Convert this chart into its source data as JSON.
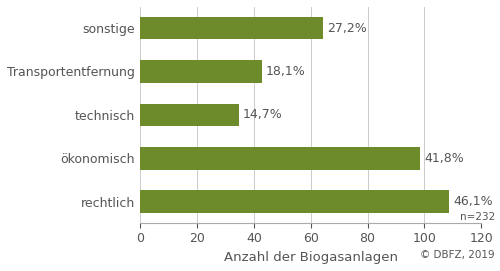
{
  "categories": [
    "rechtlich",
    "ökonomisch",
    "technisch",
    "Transportentfernung",
    "sonstige"
  ],
  "values": [
    108.579,
    98.562,
    34.629,
    42.687,
    64.208
  ],
  "percentages": [
    "46,1%",
    "41,8%",
    "14,7%",
    "18,1%",
    "27,2%"
  ],
  "bar_color": "#6d8b2a",
  "xlabel": "Anzahl der Biogasanlagen",
  "xlim": [
    0,
    120
  ],
  "xticks": [
    0,
    20,
    40,
    60,
    80,
    100,
    120
  ],
  "footnote_n": "n=232",
  "footnote_copy": "© DBFZ, 2019",
  "background_color": "#ffffff",
  "bar_height": 0.52,
  "label_fontsize": 9,
  "tick_fontsize": 9,
  "xlabel_fontsize": 9.5
}
